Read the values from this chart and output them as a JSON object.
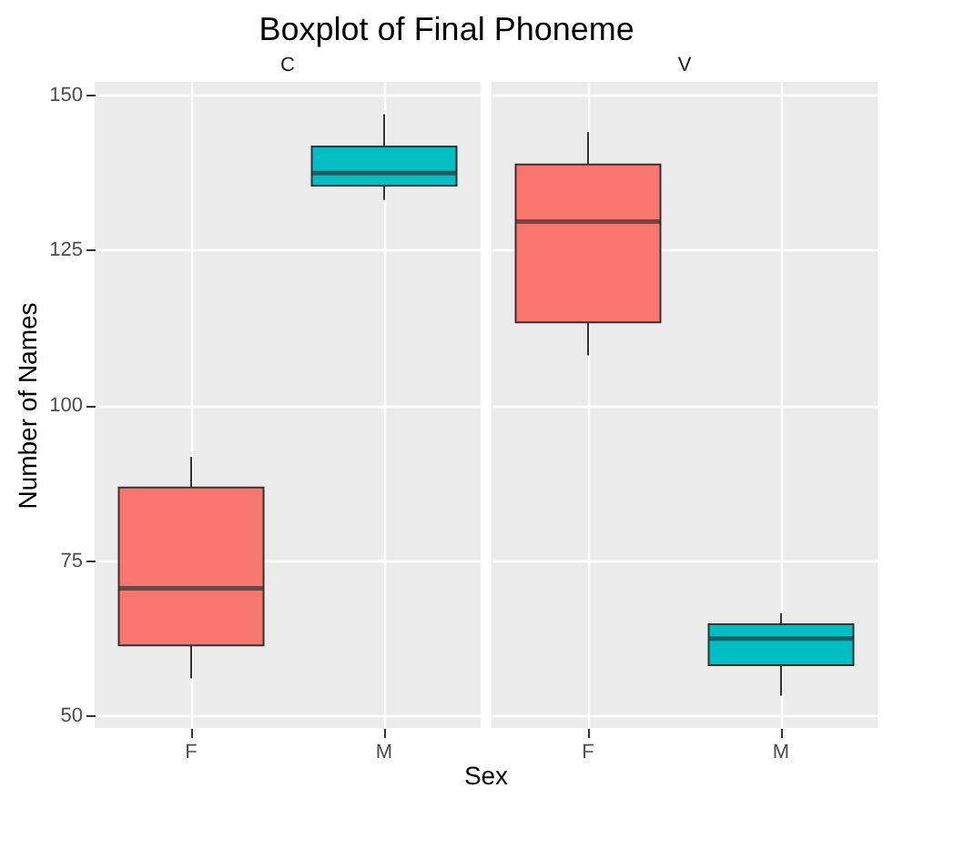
{
  "chart_data": [
    {
      "type": "box",
      "title": "Boxplot of Final Phoneme",
      "subtitle": "C",
      "xlabel": "Sex",
      "ylabel": "Number of Names",
      "categories": [
        "F",
        "M"
      ],
      "colors": [
        "#f8766d",
        "#00bfc4"
      ],
      "boxes": [
        {
          "low": 56,
          "q1": 61.3,
          "median": 70.5,
          "q3": 86.7,
          "high": 91.6
        },
        {
          "low": 133,
          "q1": 135.3,
          "median": 137.3,
          "q3": 141.6,
          "high": 146.8
        }
      ],
      "ylim": [
        48,
        152
      ],
      "yticks": [
        50,
        75,
        100,
        125,
        150
      ],
      "grid": true
    },
    {
      "type": "box",
      "subtitle": "V",
      "categories": [
        "F",
        "M"
      ],
      "colors": [
        "#f8766d",
        "#00bfc4"
      ],
      "boxes": [
        {
          "low": 108,
          "q1": 113.3,
          "median": 129.5,
          "q3": 138.7,
          "high": 143.9
        },
        {
          "low": 53.2,
          "q1": 58.1,
          "median": 62.4,
          "q3": 64.7,
          "high": 66.5
        }
      ],
      "ylim": [
        48,
        152
      ],
      "yticks": [
        50,
        75,
        100,
        125,
        150
      ],
      "grid": true,
      "tick_labels": "x"
    }
  ]
}
